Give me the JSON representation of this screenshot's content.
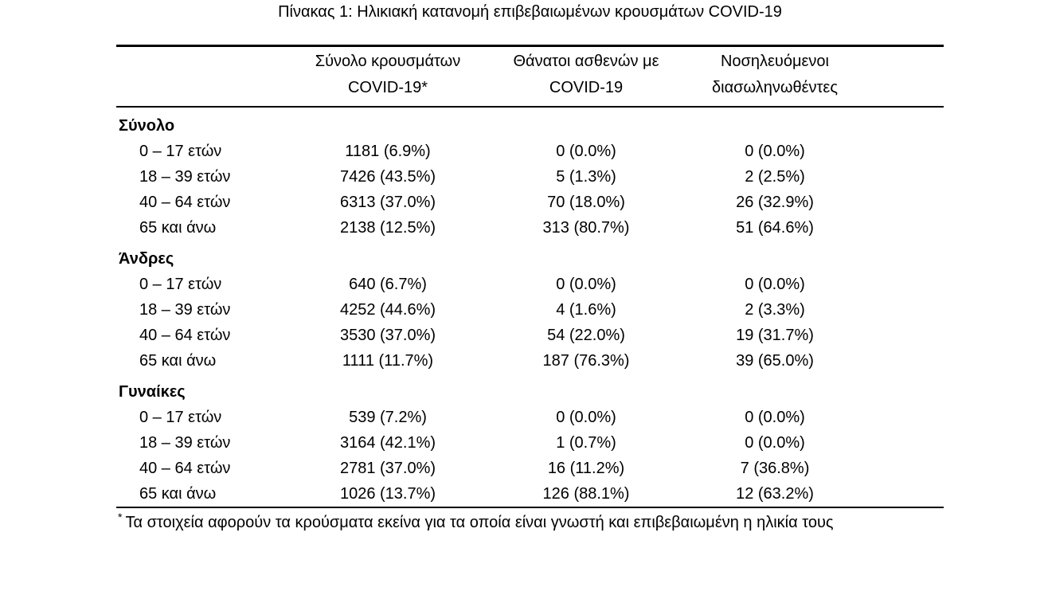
{
  "title": "Πίνακας 1: Ηλικιακή κατανομή επιβεβαιωμένων κρουσμάτων COVID-19",
  "colors": {
    "text": "#000000",
    "background": "#ffffff",
    "rule": "#000000"
  },
  "table": {
    "col_headers": [
      {
        "line1": "Σύνολο κρουσμάτων",
        "line2": "COVID-19*"
      },
      {
        "line1": "Θάνατοι ασθενών με",
        "line2": "COVID-19"
      },
      {
        "line1": "Νοσηλευόμενοι",
        "line2": "διασωληνωθέντες"
      }
    ],
    "sections": [
      {
        "label": "Σύνολο",
        "rows": [
          {
            "age": "0 – 17 ετών",
            "cases": "1181 (6.9%)",
            "deaths": "0 (0.0%)",
            "intubated": "0 (0.0%)"
          },
          {
            "age": "18 – 39 ετών",
            "cases": "7426 (43.5%)",
            "deaths": "5 (1.3%)",
            "intubated": "2 (2.5%)"
          },
          {
            "age": "40 – 64 ετών",
            "cases": "6313 (37.0%)",
            "deaths": "70 (18.0%)",
            "intubated": "26 (32.9%)"
          },
          {
            "age": "65 και άνω",
            "cases": "2138 (12.5%)",
            "deaths": "313 (80.7%)",
            "intubated": "51 (64.6%)"
          }
        ]
      },
      {
        "label": "Άνδρες",
        "rows": [
          {
            "age": "0 – 17 ετών",
            "cases": "640 (6.7%)",
            "deaths": "0 (0.0%)",
            "intubated": "0 (0.0%)"
          },
          {
            "age": "18 – 39 ετών",
            "cases": "4252 (44.6%)",
            "deaths": "4 (1.6%)",
            "intubated": "2 (3.3%)"
          },
          {
            "age": "40 – 64 ετών",
            "cases": "3530 (37.0%)",
            "deaths": "54 (22.0%)",
            "intubated": "19 (31.7%)"
          },
          {
            "age": "65 και άνω",
            "cases": "1111 (11.7%)",
            "deaths": "187 (76.3%)",
            "intubated": "39 (65.0%)"
          }
        ]
      },
      {
        "label": "Γυναίκες",
        "rows": [
          {
            "age": "0 – 17 ετών",
            "cases": "539 (7.2%)",
            "deaths": "0 (0.0%)",
            "intubated": "0 (0.0%)"
          },
          {
            "age": "18 – 39 ετών",
            "cases": "3164 (42.1%)",
            "deaths": "1 (0.7%)",
            "intubated": "0 (0.0%)"
          },
          {
            "age": "40 – 64 ετών",
            "cases": "2781 (37.0%)",
            "deaths": "16 (11.2%)",
            "intubated": "7 (36.8%)"
          },
          {
            "age": "65 και άνω",
            "cases": "1026 (13.7%)",
            "deaths": "126 (88.1%)",
            "intubated": "12 (63.2%)"
          }
        ]
      }
    ],
    "footnote_marker": "*",
    "footnote": "Τα στοιχεία αφορούν τα κρούσματα εκείνα για τα οποία είναι γνωστή και επιβεβαιωμένη η ηλικία τους"
  }
}
